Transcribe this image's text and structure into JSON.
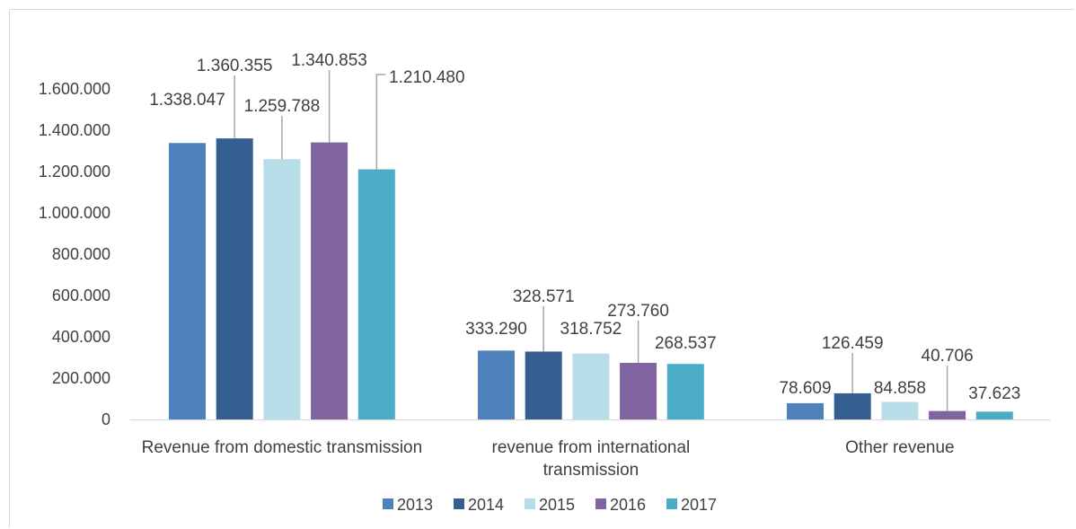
{
  "chart_data": {
    "type": "bar",
    "title": "",
    "xlabel": "",
    "ylabel": "",
    "categories": [
      [
        "Revenue from domestic transmission"
      ],
      [
        "revenue from international",
        "transmission"
      ],
      [
        "Other revenue"
      ]
    ],
    "series": [
      {
        "name": "2013",
        "color": "#4f81bd",
        "values": [
          1338047,
          333290,
          78609
        ],
        "labels": [
          "1.338.047",
          "333.290",
          "78.609"
        ]
      },
      {
        "name": "2014",
        "color": "#355e91",
        "values": [
          1360355,
          328571,
          126459
        ],
        "labels": [
          "1.360.355",
          "328.571",
          "126.459"
        ]
      },
      {
        "name": "2015",
        "color": "#b7dde8",
        "values": [
          1259788,
          318752,
          84858
        ],
        "labels": [
          "1.259.788",
          "318.752",
          "84.858"
        ]
      },
      {
        "name": "2016",
        "color": "#8064a2",
        "values": [
          1340853,
          273760,
          40706
        ],
        "labels": [
          "1.340.853",
          "273.760",
          "40.706"
        ]
      },
      {
        "name": "2017",
        "color": "#4bacc6",
        "values": [
          1210480,
          268537,
          37623
        ],
        "labels": [
          "1.210.480",
          "268.537",
          "37.623"
        ]
      }
    ],
    "ylim": [
      0,
      1600000
    ],
    "yticks": [
      0,
      200000,
      400000,
      600000,
      800000,
      1000000,
      1200000,
      1400000,
      1600000
    ],
    "ytick_labels": [
      "0",
      "200.000",
      "400.000",
      "600.000",
      "800.000",
      "1.000.000",
      "1.200.000",
      "1.400.000",
      "1.600.000"
    ],
    "grid": false,
    "legend": "bottom"
  }
}
